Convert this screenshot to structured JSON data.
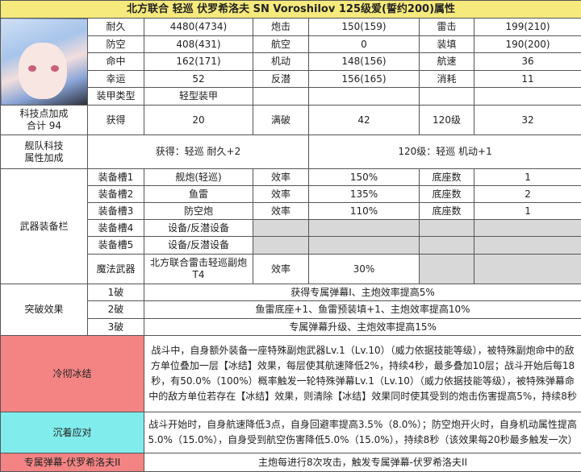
{
  "title": "北方联合 轻巡 伏罗希洛夫 SN Voroshilov 125级爱(誓约200)属性",
  "stats": [
    [
      "耐久",
      "4480(4734)",
      "炮击",
      "150(159)",
      "雷击",
      "199(210)"
    ],
    [
      "防空",
      "408(431)",
      "航空",
      "0",
      "装填",
      "190(200)"
    ],
    [
      "命中",
      "162(171)",
      "机动",
      "148(156)",
      "航速",
      "36"
    ],
    [
      "幸运",
      "52",
      "反潜",
      "156(165)",
      "消耗",
      "11"
    ]
  ],
  "armor": {
    "label": "装甲类型",
    "value": "轻型装甲"
  },
  "tech": {
    "label1": "科技点加成",
    "label2": "合计 94",
    "get_label": "获得",
    "get": "20",
    "max_label": "满破",
    "max": "42",
    "lv_label": "120级",
    "lv": "32"
  },
  "fleet": {
    "label1": "舰队科技",
    "label2": "属性加成",
    "get": "获得：轻巡 耐久+2",
    "lv120": "120级：轻巡 机动+1"
  },
  "weapons": {
    "label": "武器装备栏",
    "slots": [
      {
        "slot": "装备槽1",
        "type": "舰炮(轻巡)",
        "eff_label": "效率",
        "eff": "150%",
        "mount_label": "底座数",
        "mount": "1"
      },
      {
        "slot": "装备槽2",
        "type": "鱼雷",
        "eff_label": "效率",
        "eff": "135%",
        "mount_label": "底座数",
        "mount": "2"
      },
      {
        "slot": "装备槽3",
        "type": "防空炮",
        "eff_label": "效率",
        "eff": "110%",
        "mount_label": "底座数",
        "mount": "1"
      },
      {
        "slot": "装备槽4",
        "type": "设备/反潜设备"
      },
      {
        "slot": "装备槽5",
        "type": "设备/反潜设备"
      }
    ],
    "magic": {
      "slot": "魔法武器",
      "type1": "北方联合雷击轻巡副炮",
      "type2": "T4",
      "eff_label": "效率",
      "eff": "30%"
    }
  },
  "breakthrough": {
    "label": "突破效果",
    "rows": [
      {
        "level": "1破",
        "effect": "获得专属弹幕I、主炮效率提高5%"
      },
      {
        "level": "2破",
        "effect": "鱼雷底座+1、鱼雷预装填+1、主炮效率提高10%"
      },
      {
        "level": "3破",
        "effect": "专属弹幕升级、主炮效率提高15%"
      }
    ]
  },
  "skills": [
    {
      "name": "冷彻冰结",
      "desc": "战斗中，自身额外装备一座特殊副炮武器Lv.1（Lv.10）（威力依据技能等级），被特殊副炮命中的敌方单位叠加一层【冰结】效果，每层使其航速降低2%，持续4秒，最多叠加10层；战斗开始后每18秒，有50.0%（100%）概率触发一轮特殊弹幕Lv.1（Lv.10）（威力依据技能等级），被特殊弹幕命中的敌方单位若存在【冰结】效果，则清除【冰结】效果同时使其受到的炮击伤害提高5%，持续8秒",
      "color": "#f48484"
    },
    {
      "name": "沉着应对",
      "desc": "战斗开始时，自身航速降低3点，自身回避率提高3.5%（8.0%）；防空炮开火时，自身机动属性提高5.0%（15.0%），自身受到航空伤害降低5.0%（15.0%），持续8秒（该效果每20秒最多触发一次）",
      "color": "#80ecec"
    },
    {
      "name": "专属弹幕-伏罗希洛夫II",
      "desc": "主炮每进行8次攻击，触发专属弹幕-伏罗希洛夫II",
      "color": "#f48484"
    }
  ]
}
